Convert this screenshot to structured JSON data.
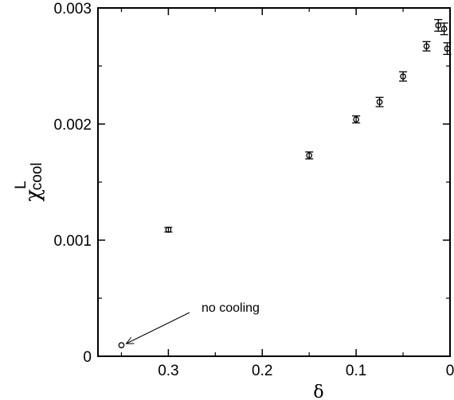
{
  "chart_data": {
    "type": "scatter",
    "title": "",
    "xlabel": "δ",
    "ylabel": {
      "main": "χ",
      "superscript": "L",
      "subscript": "cool"
    },
    "xlim": [
      0.375,
      0
    ],
    "ylim": [
      0,
      0.003
    ],
    "x_reversed": true,
    "grid": false,
    "legend": "none",
    "x_ticks": [
      0.3,
      0.2,
      0.1,
      0
    ],
    "x_tick_labels": [
      "0.3",
      "0.2",
      "0.1",
      "0"
    ],
    "y_ticks": [
      0,
      0.001,
      0.002,
      0.003
    ],
    "y_tick_labels": [
      "0",
      "0.001",
      "0.002",
      "0.003"
    ],
    "marker": "open-circle",
    "color": "#000000",
    "points": [
      {
        "x": 0.35,
        "y": 9.5e-05,
        "err": 0.0
      },
      {
        "x": 0.3,
        "y": 0.00109,
        "err": 2e-05
      },
      {
        "x": 0.15,
        "y": 0.00173,
        "err": 3e-05
      },
      {
        "x": 0.1,
        "y": 0.00204,
        "err": 3e-05
      },
      {
        "x": 0.075,
        "y": 0.00219,
        "err": 4e-05
      },
      {
        "x": 0.05,
        "y": 0.00241,
        "err": 4e-05
      },
      {
        "x": 0.025,
        "y": 0.00267,
        "err": 4e-05
      },
      {
        "x": 0.0125,
        "y": 0.00285,
        "err": 5e-05
      },
      {
        "x": 0.00625,
        "y": 0.00282,
        "err": 5e-05
      },
      {
        "x": 0.003,
        "y": 0.00265,
        "err": 5e-05
      }
    ],
    "annotations": [
      {
        "text": "no cooling",
        "target_x": 0.35,
        "target_y": 9.5e-05
      }
    ]
  }
}
